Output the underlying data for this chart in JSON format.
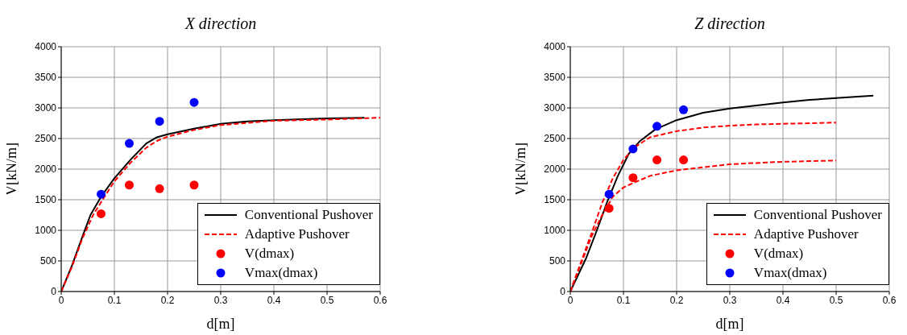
{
  "chart_data": [
    {
      "type": "line",
      "title": "X direction",
      "xlabel": "d[m]",
      "ylabel": "V[kN/m]",
      "xlim": [
        0,
        0.6
      ],
      "xticks": [
        0,
        0.1,
        0.2,
        0.3,
        0.4,
        0.5,
        0.6
      ],
      "ylim": [
        0,
        4000
      ],
      "yticks": [
        0,
        500,
        1000,
        1500,
        2000,
        2500,
        3000,
        3500,
        4000
      ],
      "grid": true,
      "legend": "bottom right",
      "series": [
        {
          "name": "Conventional Pushover",
          "color": "#000000",
          "line_style": "solid",
          "marker": "none",
          "x": [
            0,
            0.02,
            0.04,
            0.055,
            0.075,
            0.1,
            0.13,
            0.16,
            0.18,
            0.2,
            0.25,
            0.3,
            0.35,
            0.4,
            0.5,
            0.57
          ],
          "values": [
            0,
            420,
            900,
            1250,
            1550,
            1850,
            2150,
            2420,
            2520,
            2570,
            2660,
            2740,
            2780,
            2800,
            2830,
            2840
          ]
        },
        {
          "name": "Adaptive Pushover",
          "color": "#ff0000",
          "line_style": "dashed",
          "marker": "none",
          "x": [
            0,
            0.02,
            0.04,
            0.06,
            0.08,
            0.1,
            0.13,
            0.16,
            0.18,
            0.2,
            0.25,
            0.3,
            0.4,
            0.5,
            0.6
          ],
          "values": [
            0,
            400,
            870,
            1250,
            1530,
            1800,
            2100,
            2350,
            2460,
            2530,
            2640,
            2720,
            2790,
            2810,
            2840
          ]
        },
        {
          "name": "V(dmax)",
          "type": "scatter",
          "color": "#ff0000",
          "marker": "circle",
          "x": [
            0.075,
            0.128,
            0.185,
            0.25
          ],
          "values": [
            1270,
            1740,
            1680,
            1740
          ]
        },
        {
          "name": "Vmax(dmax)",
          "type": "scatter",
          "color": "#0000ff",
          "marker": "circle",
          "x": [
            0.075,
            0.128,
            0.185,
            0.25
          ],
          "values": [
            1590,
            2420,
            2780,
            3090
          ]
        }
      ]
    },
    {
      "type": "line",
      "title": "Z direction",
      "xlabel": "d[m]",
      "ylabel": "V[kN/m]",
      "xlim": [
        0,
        0.6
      ],
      "xticks": [
        0,
        0.1,
        0.2,
        0.3,
        0.4,
        0.5,
        0.6
      ],
      "ylim": [
        0,
        4000
      ],
      "yticks": [
        0,
        500,
        1000,
        1500,
        2000,
        2500,
        3000,
        3500,
        4000
      ],
      "grid": true,
      "legend": "bottom right",
      "series": [
        {
          "name": "Conventional Pushover",
          "color": "#000000",
          "line_style": "solid",
          "marker": "none",
          "x": [
            0,
            0.03,
            0.05,
            0.07,
            0.09,
            0.11,
            0.13,
            0.16,
            0.2,
            0.25,
            0.3,
            0.35,
            0.4,
            0.45,
            0.5,
            0.57
          ],
          "values": [
            0,
            550,
            1000,
            1480,
            1900,
            2250,
            2450,
            2650,
            2800,
            2920,
            2990,
            3040,
            3090,
            3130,
            3160,
            3200
          ]
        },
        {
          "name": "Adaptive Pushover",
          "color": "#ff0000",
          "line_style": "dashed",
          "marker": "none",
          "x": [
            0,
            0.02,
            0.04,
            0.06,
            0.08,
            0.1,
            0.12,
            0.15,
            0.2,
            0.25,
            0.3,
            0.35,
            0.4,
            0.45,
            0.5
          ],
          "values": [
            0,
            480,
            950,
            1450,
            1850,
            2150,
            2350,
            2520,
            2620,
            2680,
            2710,
            2730,
            2740,
            2750,
            2760
          ]
        },
        {
          "color": "#ff0000",
          "line_style": "dashed",
          "marker": "none",
          "x": [
            0,
            0.02,
            0.04,
            0.06,
            0.08,
            0.1,
            0.12,
            0.15,
            0.2,
            0.25,
            0.3,
            0.35,
            0.4,
            0.45,
            0.5
          ],
          "values": [
            0,
            450,
            900,
            1250,
            1550,
            1700,
            1780,
            1890,
            1980,
            2030,
            2080,
            2100,
            2120,
            2130,
            2140
          ]
        },
        {
          "name": "V(dmax)",
          "type": "scatter",
          "color": "#ff0000",
          "marker": "circle",
          "x": [
            0.073,
            0.118,
            0.163,
            0.213
          ],
          "values": [
            1360,
            1860,
            2150,
            2150
          ]
        },
        {
          "name": "Vmax(dmax)",
          "type": "scatter",
          "color": "#0000ff",
          "marker": "circle",
          "x": [
            0.073,
            0.118,
            0.163,
            0.213
          ],
          "values": [
            1590,
            2330,
            2700,
            2970
          ]
        }
      ]
    }
  ]
}
